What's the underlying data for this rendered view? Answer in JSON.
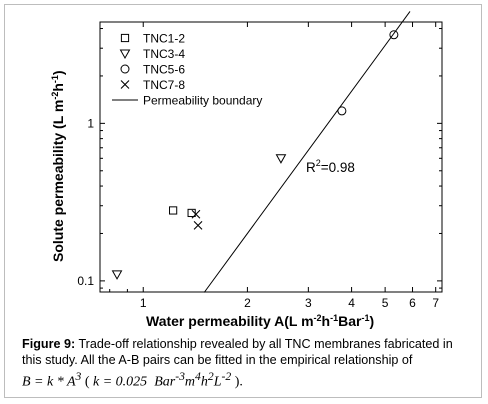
{
  "chart_data": {
    "type": "scatter",
    "xscale": "log",
    "yscale": "log",
    "xlim": [
      0.75,
      7.3
    ],
    "ylim": [
      0.085,
      4.4
    ],
    "xticks": [
      {
        "value": 1,
        "label": "1"
      },
      {
        "value": 2,
        "label": "2"
      },
      {
        "value": 3,
        "label": "3"
      },
      {
        "value": 4,
        "label": "4"
      },
      {
        "value": 5,
        "label": "5"
      },
      {
        "value": 6,
        "label": "6"
      },
      {
        "value": 7,
        "label": "7"
      }
    ],
    "yticks": [
      {
        "value": 0.1,
        "label": "0.1"
      },
      {
        "value": 1,
        "label": "1"
      }
    ],
    "xlabel": {
      "main": "Water permeability A(L m",
      "sup1": "-2",
      "mid1": "h",
      "sup2": "-1",
      "mid2": "Bar",
      "sup3": "-1",
      "end": ")"
    },
    "ylabel": {
      "main": "Solute permeability (L m",
      "sup1": "-2",
      "mid": "h",
      "sup2": "-1",
      "end": ")"
    },
    "series": [
      {
        "name": "TNC1-2",
        "marker": "square",
        "points": [
          [
            1.22,
            0.28
          ],
          [
            1.38,
            0.27
          ]
        ]
      },
      {
        "name": "TNC3-4",
        "marker": "triangle-down",
        "points": [
          [
            0.84,
            0.11
          ],
          [
            2.5,
            0.6
          ]
        ]
      },
      {
        "name": "TNC5-6",
        "marker": "circle",
        "points": [
          [
            3.75,
            1.2
          ],
          [
            5.3,
            3.65
          ]
        ]
      },
      {
        "name": "TNC7-8",
        "marker": "x",
        "points": [
          [
            1.42,
            0.265
          ],
          [
            1.44,
            0.225
          ]
        ]
      }
    ],
    "boundary": {
      "name": "Permeability boundary",
      "k": 0.025,
      "exponent": 3,
      "x_range": [
        1.5,
        5.9
      ]
    },
    "annotation": {
      "text_base": "R",
      "text_sup": "2",
      "text_rest": "=0.98"
    }
  },
  "caption": {
    "label": "Figure 9:",
    "text": " Trade-off relationship revealed by all TNC membranes fabricated in this study. All the A-B pairs can be fitted in the empirical relationship of",
    "formula_lhs": "B = k * A",
    "formula_exp": "3",
    "formula_open": "( ",
    "formula_k": "k = 0.025",
    "formula_units": "Bar",
    "u1": "-3",
    "formula_m": "m",
    "u2": "4",
    "formula_h": "h",
    "u3": "2",
    "formula_L": "L",
    "u4": "-2",
    "formula_close": " )."
  }
}
